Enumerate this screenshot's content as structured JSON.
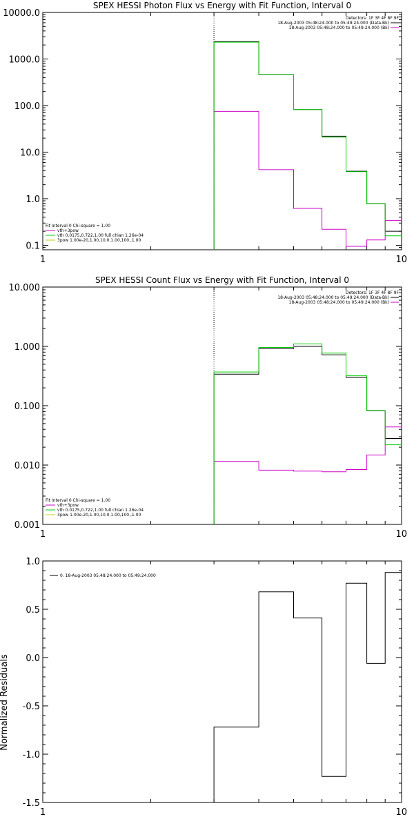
{
  "chart_data": [
    {
      "type": "line",
      "title": "SPEX HESSI Photon Flux vs Energy with Fit Function, Interval 0",
      "xscale": "log",
      "yscale": "log",
      "xlim": [
        1,
        10
      ],
      "ylim": [
        0.08,
        10000
      ],
      "yticks": [
        "10000.0",
        "1000.0",
        "100.0",
        "10.0",
        "1.0",
        "0.1"
      ],
      "ytick_values": [
        10000,
        1000,
        100,
        10,
        1,
        0.1
      ],
      "xticks": [
        "1",
        "10"
      ],
      "xtick_values": [
        1,
        10
      ],
      "marker_x": 3.0,
      "bin_edges": [
        3.0,
        4.0,
        5.0,
        6.0,
        7.0,
        8.0,
        9.0,
        10.0
      ],
      "series": [
        {
          "name": "18-Aug-2003 05:48:24.000 to 05:49:24.000 (Data-Bk)",
          "color": "#000000",
          "values": [
            2350,
            460,
            82,
            22,
            3.9,
            0.78,
            0.2
          ]
        },
        {
          "name": "18-Aug-2003 05:48:24.000 to 05:49:24.000 (Bk)",
          "color": "#cc00cc",
          "values": [
            75,
            4.2,
            0.62,
            0.22,
            0.095,
            0.13,
            0.34
          ]
        },
        {
          "name": "",
          "color": "#00cc00",
          "values": [
            2300,
            460,
            82,
            21,
            3.8,
            0.78,
            0.16
          ]
        }
      ],
      "legend_header": "Detectors: 1F 3F 4F 8F 9F",
      "fit_legend": {
        "header": "Fit Interval 0   Chi-square = 1.00",
        "lines": [
          {
            "text": "vth+3pow",
            "color": "#cc00cc"
          },
          {
            "text": "vth 0.0175,0.722,1.00  full chian 1.26e-04",
            "color": "#00cc00"
          },
          {
            "text": "3pow 1.00e-20,1.00,10.0,1.00,100.,1.00",
            "color": "#cccc00"
          }
        ]
      }
    },
    {
      "type": "line",
      "title": "SPEX HESSI Count Flux vs Energy with Fit Function, Interval 0",
      "xscale": "log",
      "yscale": "log",
      "xlim": [
        1,
        10
      ],
      "ylim": [
        0.001,
        10
      ],
      "yticks": [
        "10.000",
        "1.000",
        "0.100",
        "0.010",
        "0.001"
      ],
      "ytick_values": [
        10,
        1,
        0.1,
        0.01,
        0.001
      ],
      "xticks": [
        "1",
        "10"
      ],
      "xtick_values": [
        1,
        10
      ],
      "marker_x": 3.0,
      "bin_edges": [
        3.0,
        4.0,
        5.0,
        6.0,
        7.0,
        8.0,
        9.0,
        10.0
      ],
      "series": [
        {
          "name": "18-Aug-2003 05:48:24.000 to 05:49:24.000 (Data-Bk)",
          "color": "#000000",
          "values": [
            0.34,
            0.92,
            1.0,
            0.72,
            0.3,
            0.082,
            0.028
          ]
        },
        {
          "name": "18-Aug-2003 05:48:24.000 to 05:49:24.000 (Bk)",
          "color": "#cc00cc",
          "values": [
            0.0115,
            0.0082,
            0.0079,
            0.0077,
            0.0084,
            0.0148,
            0.044
          ]
        },
        {
          "name": "",
          "color": "#00cc00",
          "values": [
            0.37,
            0.96,
            1.1,
            0.77,
            0.32,
            0.083,
            0.022
          ]
        }
      ],
      "legend_header": "Detectors: 1F 3F 4F 8F 9F",
      "fit_legend": {
        "header": "Fit Interval 0   Chi-square = 1.00",
        "lines": [
          {
            "text": "vth+3pow",
            "color": "#cc00cc"
          },
          {
            "text": "vth 0.0175,0.722,1.00  full chian 1.26e-04",
            "color": "#00cc00"
          },
          {
            "text": "3pow 1.00e-20,1.00,10.0,1.00,100.,1.00",
            "color": "#cccc00"
          }
        ]
      }
    },
    {
      "type": "line",
      "title": "",
      "xscale": "log",
      "yscale": "linear",
      "xlim": [
        1,
        10
      ],
      "ylim": [
        -1.5,
        1.0
      ],
      "yticks": [
        "1.0",
        "0.5",
        "0.0",
        "-0.5",
        "-1.0",
        "-1.5"
      ],
      "ytick_values": [
        1.0,
        0.5,
        0.0,
        -0.5,
        -1.0,
        -1.5
      ],
      "xticks": [
        "1",
        "10"
      ],
      "xtick_values": [
        1,
        10
      ],
      "ylabel": "Normalized Residuals",
      "bin_edges": [
        3.0,
        4.0,
        5.0,
        6.0,
        7.0,
        8.0,
        9.0,
        10.0
      ],
      "series": [
        {
          "name": "0. 18-Aug-2003 05:48:24.000 to 05:49:24.000",
          "color": "#000000",
          "values": [
            -0.72,
            0.68,
            0.41,
            -1.23,
            0.77,
            -0.06,
            0.88
          ]
        }
      ]
    }
  ]
}
